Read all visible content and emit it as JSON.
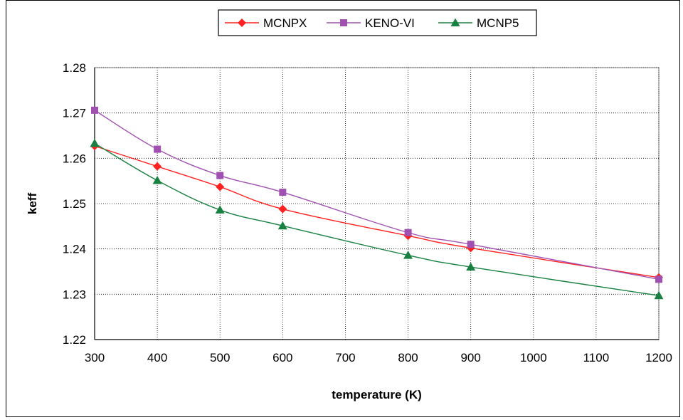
{
  "chart_data": {
    "type": "line",
    "title": "",
    "xlabel": "temperature (K)",
    "ylabel": "keff",
    "xlim": [
      300,
      1200
    ],
    "ylim": [
      1.22,
      1.28
    ],
    "x_ticks": [
      "300",
      "400",
      "500",
      "600",
      "700",
      "800",
      "900",
      "1000",
      "1100",
      "1200"
    ],
    "y_ticks": [
      "1.22",
      "1.23",
      "1.24",
      "1.25",
      "1.26",
      "1.27",
      "1.28"
    ],
    "grid": "dotted",
    "legend_position": "top-center",
    "series": [
      {
        "name": "MCNPX",
        "color": "#ff2020",
        "marker": "diamond",
        "x": [
          300,
          400,
          500,
          600,
          800,
          900,
          1200
        ],
        "y": [
          1.2627,
          1.2582,
          1.2537,
          1.2488,
          1.2429,
          1.2402,
          1.2337
        ]
      },
      {
        "name": "KENO-VI",
        "color": "#a050b0",
        "marker": "square",
        "x": [
          300,
          400,
          500,
          600,
          800,
          900,
          1200
        ],
        "y": [
          1.2706,
          1.262,
          1.2562,
          1.2525,
          1.2436,
          1.241,
          1.2333
        ]
      },
      {
        "name": "MCNP5",
        "color": "#188040",
        "marker": "triangle",
        "x": [
          300,
          400,
          500,
          600,
          800,
          900,
          1200
        ],
        "y": [
          1.2633,
          1.2551,
          1.2486,
          1.2451,
          1.2386,
          1.236,
          1.2297
        ]
      }
    ]
  }
}
